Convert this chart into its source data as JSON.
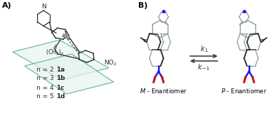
{
  "panel_a_label": "A)",
  "panel_b_label": "B)",
  "n_labels": [
    "n = 2",
    "n = 3",
    "n = 4",
    "n = 5"
  ],
  "compound_labels": [
    "1a",
    "1b",
    "1c",
    "1d"
  ],
  "m_enantiomer": "M - Enantiomer",
  "p_enantiomer": "P - Enantiomer",
  "no2_label": "NO$_2$",
  "ch2n_label": "(CH$_2$)$_n$",
  "n_label": "N",
  "bg_color": "#ffffff",
  "text_color": "#000000",
  "teal_color": "#3a9e8a",
  "mol_gray": "#8a9a9a",
  "mol_dark": "#2a2a2a",
  "mol_mid": "#5a6a6a",
  "blue_color": "#1a1aee",
  "red_color": "#cc1111",
  "blue_n": "#3333cc",
  "arrow_gray": "#444444",
  "phi_color": "#666666",
  "plane_fill": "#d8e8e5"
}
